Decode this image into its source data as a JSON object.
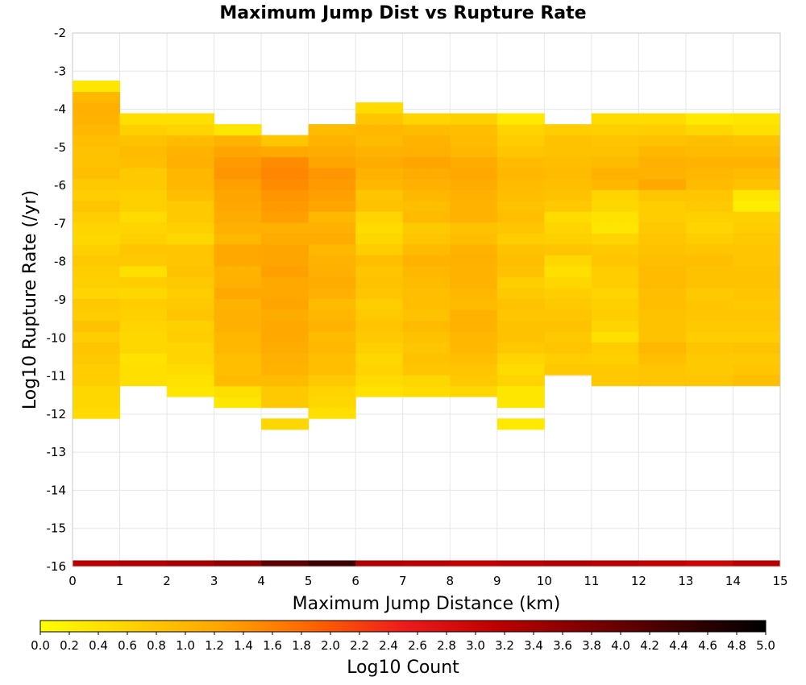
{
  "chart_data": {
    "type": "heatmap",
    "title": "Maximum Jump Dist vs Rupture Rate",
    "xlabel": "Maximum Jump Distance (km)",
    "ylabel": "Log10 Rupture Rate (/yr)",
    "xlim": [
      0,
      15
    ],
    "ylim": [
      -16,
      -2
    ],
    "x_ticks": [
      "0",
      "1",
      "2",
      "3",
      "4",
      "5",
      "6",
      "7",
      "8",
      "9",
      "10",
      "11",
      "12",
      "13",
      "14",
      "15"
    ],
    "y_ticks": [
      "-2",
      "-3",
      "-4",
      "-5",
      "-6",
      "-7",
      "-8",
      "-9",
      "-10",
      "-11",
      "-12",
      "-13",
      "-14",
      "-15",
      "-16"
    ],
    "grid": true,
    "x_bin_width": 1,
    "y_bin_height": 0.286,
    "y_bin_start": -12.4,
    "colorbar": {
      "label": "Log10 Count",
      "range": [
        0.0,
        5.0
      ],
      "ticks": [
        "0.0",
        "0.2",
        "0.4",
        "0.6",
        "0.8",
        "1.0",
        "1.2",
        "1.4",
        "1.6",
        "1.8",
        "2.0",
        "2.2",
        "2.4",
        "2.6",
        "2.8",
        "3.0",
        "3.2",
        "3.4",
        "3.6",
        "3.8",
        "4.0",
        "4.2",
        "4.4",
        "4.6",
        "4.8",
        "5.0"
      ],
      "colors": [
        "#ffff00",
        "#ffd200",
        "#ffa500",
        "#ff6400",
        "#ee1c1c",
        "#c00000",
        "#800000",
        "#400000",
        "#000000"
      ]
    },
    "column_values": [
      [
        null,
        0.5,
        0.55,
        0.55,
        0.7,
        0.7,
        0.75,
        0.8,
        0.7,
        0.85,
        0.7,
        0.75,
        0.6,
        0.65,
        0.7,
        0.75,
        0.65,
        0.55,
        0.6,
        0.7,
        0.8,
        0.7,
        0.75,
        0.9,
        0.85,
        0.85,
        0.9,
        1.0,
        1.05,
        1.1,
        1.0,
        0.35
      ],
      [
        null,
        null,
        null,
        null,
        0.45,
        0.45,
        0.4,
        0.55,
        0.55,
        0.6,
        0.65,
        0.7,
        0.55,
        0.7,
        0.45,
        0.75,
        0.8,
        0.65,
        0.6,
        0.5,
        0.65,
        0.65,
        0.75,
        0.75,
        0.9,
        0.95,
        0.85,
        0.65,
        0.45
      ],
      [
        null,
        null,
        null,
        0.35,
        0.4,
        0.5,
        0.6,
        0.6,
        0.7,
        0.65,
        0.8,
        0.75,
        0.7,
        0.75,
        0.85,
        0.8,
        0.8,
        0.55,
        0.65,
        0.75,
        0.75,
        0.9,
        1.0,
        1.0,
        1.1,
        1.05,
        0.95,
        0.6,
        0.45
      ],
      [
        null,
        null,
        0.35,
        0.45,
        0.95,
        0.9,
        0.9,
        1.0,
        1.0,
        1.1,
        1.1,
        1.05,
        1.2,
        1.1,
        1.05,
        1.2,
        1.2,
        1.0,
        1.1,
        1.15,
        1.2,
        1.25,
        1.3,
        1.4,
        1.35,
        1.25,
        1.05,
        0.35
      ],
      [
        0.55,
        null,
        0.75,
        0.75,
        0.95,
        1.05,
        1.1,
        1.15,
        1.2,
        1.2,
        1.15,
        1.25,
        1.2,
        1.2,
        1.3,
        1.25,
        1.25,
        1.15,
        1.1,
        1.3,
        1.35,
        1.4,
        1.5,
        1.55,
        1.5,
        1.2,
        0.8
      ],
      [
        null,
        0.45,
        0.55,
        0.6,
        0.75,
        0.9,
        0.9,
        1.0,
        0.95,
        1.05,
        1.0,
        0.95,
        1.1,
        1.15,
        1.1,
        1.05,
        1.0,
        1.15,
        1.1,
        1.0,
        1.25,
        1.3,
        1.35,
        1.4,
        1.25,
        1.15,
        1.05,
        0.95
      ],
      [
        null,
        null,
        null,
        0.4,
        0.5,
        0.6,
        0.55,
        0.65,
        0.75,
        0.8,
        0.75,
        0.7,
        0.8,
        0.85,
        0.8,
        0.9,
        0.7,
        0.55,
        0.5,
        0.6,
        0.85,
        0.8,
        1.0,
        1.05,
        1.15,
        1.05,
        0.95,
        1.0,
        0.8,
        0.5
      ],
      [
        null,
        null,
        null,
        0.5,
        0.55,
        0.8,
        0.85,
        0.8,
        0.85,
        0.95,
        0.85,
        0.9,
        0.9,
        0.95,
        1.0,
        1.05,
        0.95,
        0.8,
        0.75,
        0.95,
        0.9,
        1.0,
        1.1,
        1.15,
        1.25,
        1.1,
        1.05,
        0.95,
        0.6
      ],
      [
        null,
        null,
        null,
        0.55,
        0.75,
        0.8,
        0.9,
        1.0,
        1.0,
        1.05,
        1.05,
        0.95,
        1.0,
        1.05,
        1.05,
        1.1,
        1.05,
        0.9,
        0.85,
        1.05,
        1.05,
        1.1,
        1.15,
        1.2,
        1.15,
        1.0,
        0.95,
        0.9,
        0.65
      ],
      [
        0.3,
        null,
        0.35,
        0.35,
        0.6,
        0.5,
        0.6,
        0.75,
        0.85,
        0.85,
        0.8,
        0.85,
        0.75,
        0.7,
        0.85,
        0.9,
        0.85,
        0.7,
        0.8,
        0.9,
        0.85,
        0.9,
        0.95,
        1.0,
        0.95,
        0.8,
        0.7,
        0.6,
        0.3
      ],
      [
        null,
        null,
        null,
        null,
        null,
        0.75,
        0.7,
        0.8,
        0.75,
        0.85,
        0.8,
        0.75,
        0.7,
        0.55,
        0.45,
        0.55,
        0.8,
        0.65,
        0.6,
        0.5,
        0.75,
        0.85,
        0.9,
        0.95,
        0.9,
        0.85,
        0.85,
        0.7
      ],
      [
        null,
        null,
        null,
        null,
        0.75,
        0.75,
        0.65,
        0.7,
        0.45,
        0.6,
        0.7,
        0.65,
        0.6,
        0.7,
        0.7,
        0.8,
        0.75,
        0.6,
        0.35,
        0.4,
        0.55,
        0.6,
        1.0,
        1.05,
        0.95,
        0.85,
        0.8,
        0.65,
        0.5
      ],
      [
        null,
        null,
        null,
        null,
        0.8,
        0.8,
        0.9,
        1.0,
        0.85,
        0.85,
        0.85,
        0.9,
        0.9,
        0.95,
        0.95,
        0.9,
        0.85,
        0.8,
        0.75,
        0.7,
        0.7,
        0.8,
        1.2,
        1.05,
        1.1,
        1.0,
        0.85,
        0.7,
        0.5
      ],
      [
        null,
        null,
        null,
        null,
        0.8,
        0.75,
        0.75,
        0.8,
        0.7,
        0.75,
        0.8,
        0.8,
        0.75,
        0.85,
        0.85,
        0.9,
        0.8,
        0.7,
        0.6,
        0.65,
        0.75,
        0.8,
        0.95,
        1.0,
        1.05,
        0.95,
        0.9,
        0.55,
        0.3
      ],
      [
        null,
        null,
        null,
        null,
        0.9,
        0.8,
        0.75,
        0.85,
        0.7,
        0.75,
        0.8,
        0.75,
        0.8,
        0.85,
        0.85,
        0.8,
        0.8,
        0.75,
        0.7,
        0.65,
        0.25,
        0.35,
        0.85,
        0.95,
        1.05,
        0.95,
        0.85,
        0.45,
        0.35
      ]
    ],
    "bottom_row_y": -16,
    "bottom_row_values": [
      3.2,
      3.3,
      3.4,
      3.6,
      4.1,
      4.4,
      3.3,
      3.2,
      3.1,
      3.2,
      3.3,
      3.2,
      3.1,
      3.0,
      3.2
    ]
  }
}
